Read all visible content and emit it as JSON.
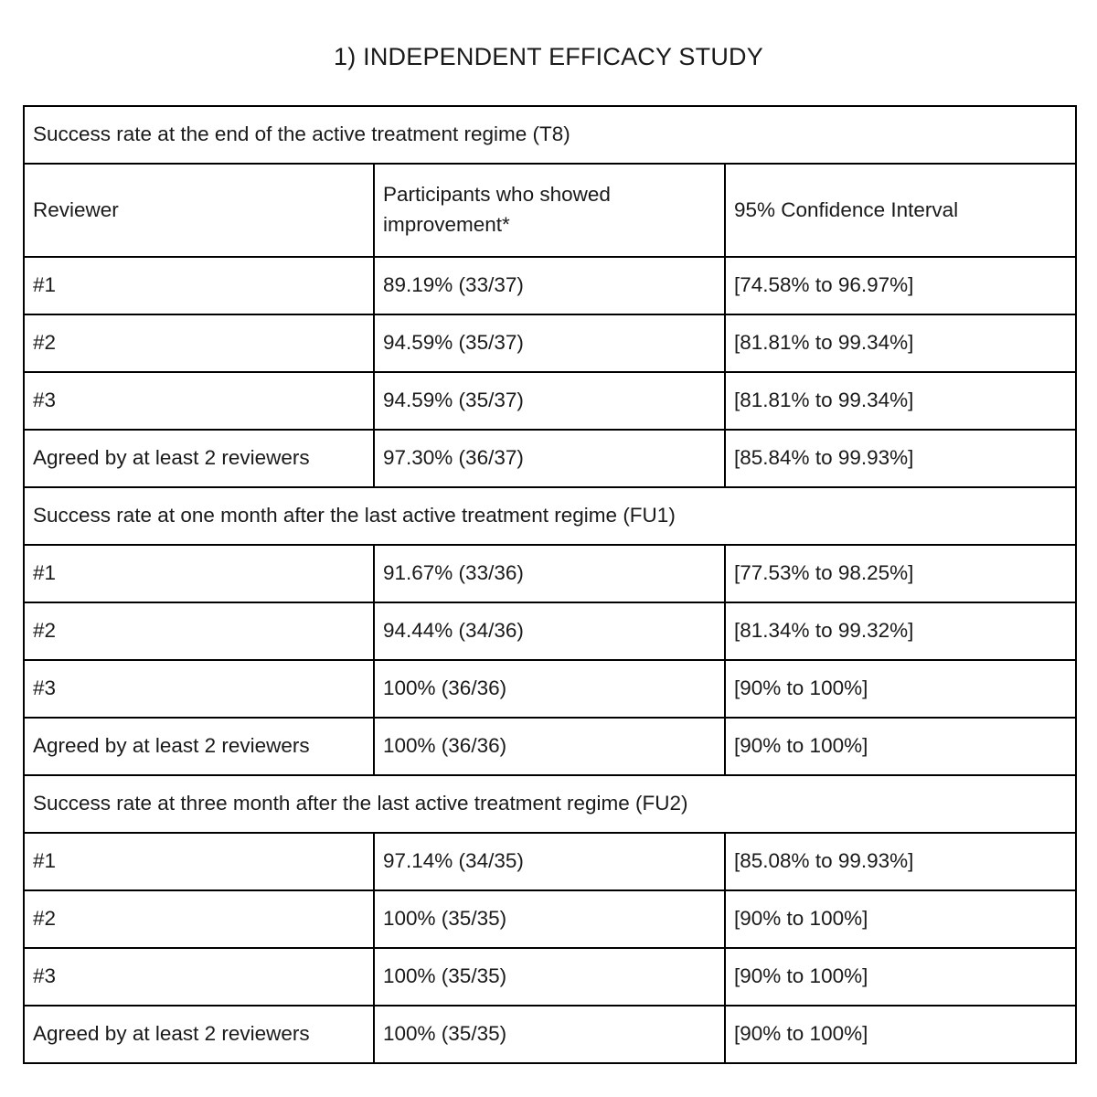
{
  "page": {
    "title": "1) INDEPENDENT EFFICACY STUDY"
  },
  "colors": {
    "background": "#ffffff",
    "border": "#000000",
    "text": "#1a1a1a"
  },
  "table": {
    "columns": [
      "Reviewer",
      "Participants who showed improvement*",
      "95% Confidence Interval"
    ],
    "sections": [
      {
        "header": "Success rate at the end of the active treatment regime (T8)",
        "rows": [
          [
            "#1",
            "89.19% (33/37)",
            "[74.58% to 96.97%]"
          ],
          [
            "#2",
            "94.59% (35/37)",
            "[81.81% to 99.34%]"
          ],
          [
            "#3",
            "94.59% (35/37)",
            "[81.81% to 99.34%]"
          ],
          [
            "Agreed by at least 2 reviewers",
            "97.30% (36/37)",
            "[85.84% to 99.93%]"
          ]
        ]
      },
      {
        "header": "Success rate at one month after the last active treatment regime (FU1)",
        "rows": [
          [
            "#1",
            "91.67% (33/36)",
            "[77.53% to 98.25%]"
          ],
          [
            "#2",
            "94.44% (34/36)",
            "[81.34% to 99.32%]"
          ],
          [
            "#3",
            "100% (36/36)",
            "[90% to 100%]"
          ],
          [
            "Agreed by at least 2 reviewers",
            "100% (36/36)",
            "[90% to 100%]"
          ]
        ]
      },
      {
        "header": "Success rate at three month after the last active treatment regime (FU2)",
        "rows": [
          [
            "#1",
            "97.14% (34/35)",
            "[85.08% to 99.93%]"
          ],
          [
            "#2",
            "100% (35/35)",
            "[90% to 100%]"
          ],
          [
            "#3",
            "100% (35/35)",
            "[90% to 100%]"
          ],
          [
            "Agreed by at least 2 reviewers",
            "100% (35/35)",
            "[90% to 100%]"
          ]
        ]
      }
    ]
  }
}
